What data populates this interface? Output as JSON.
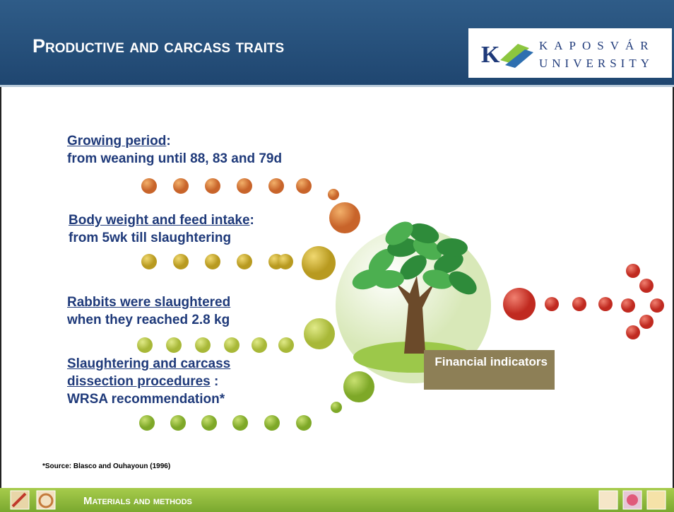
{
  "header": {
    "title": "Productive and carcass traits",
    "logo": {
      "letter": "K",
      "line1": "KAPOSVÁR",
      "line2": "UNIVERSITY"
    }
  },
  "items": [
    {
      "heading": "Growing period",
      "punct": ":",
      "text": "from weaning until 88, 83 and 79d"
    },
    {
      "heading": "Body weight and feed intake",
      "punct": ":",
      "text": "from 5wk till slaughtering"
    },
    {
      "heading": "Rabbits were slaughtered",
      "text": "when they reached 2.8 kg"
    },
    {
      "heading": "Slaughtering and carcass dissection procedures",
      "punct": " :",
      "text": "WRSA recommendation*"
    }
  ],
  "badge": "Financial indicators",
  "source": "*Source: Blasco and Ouhayoun (1996)",
  "footer": {
    "section": "Materials and methods"
  }
}
